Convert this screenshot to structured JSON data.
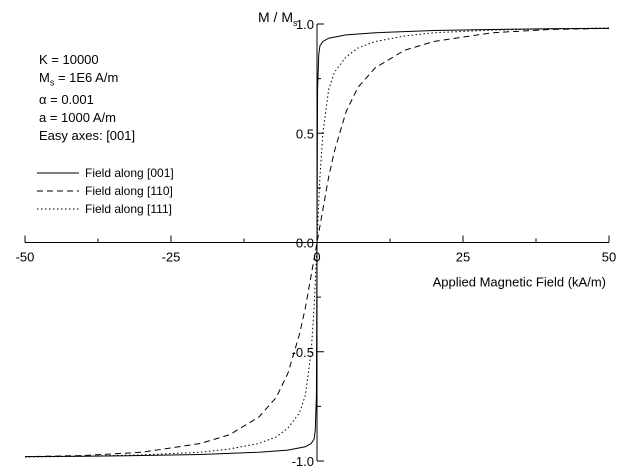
{
  "chart_data": {
    "type": "line",
    "ylabel_main": "M / M",
    "ylabel_sub": "s",
    "xlabel": "Applied Magnetic Field (kA/m)",
    "xlim": [
      -50,
      50
    ],
    "ylim": [
      -1.0,
      1.0
    ],
    "x_ticks": [
      "-50",
      "-25",
      "0",
      "25",
      "50"
    ],
    "y_ticks": [
      "-1.0",
      "-0.5",
      "0.0",
      "0.5",
      "1.0"
    ],
    "grid": false,
    "legend_position": "upper-left",
    "parameters": {
      "k": "K = 10000",
      "ms_main": "M",
      "ms_sub": "s",
      "ms_rest": " = 1E6 A/m",
      "alpha": "α = 0.001",
      "a": "a = 1000 A/m",
      "easy": "Easy axes: [001]"
    },
    "series": [
      {
        "name": "Field along [001]",
        "style": "solid",
        "x": [
          0,
          0.1,
          0.3,
          0.5,
          1,
          2,
          5,
          10,
          20,
          30,
          40,
          50
        ],
        "y": [
          0,
          0.7,
          0.86,
          0.9,
          0.92,
          0.935,
          0.95,
          0.96,
          0.97,
          0.975,
          0.978,
          0.98
        ]
      },
      {
        "name": "Field along [110]",
        "style": "dashed",
        "x": [
          0,
          1,
          2,
          3,
          5,
          7,
          10,
          15,
          20,
          30,
          40,
          50
        ],
        "y": [
          0,
          0.15,
          0.3,
          0.42,
          0.6,
          0.71,
          0.8,
          0.88,
          0.92,
          0.96,
          0.975,
          0.98
        ]
      },
      {
        "name": "Field along [111]",
        "style": "dotted",
        "x": [
          0,
          0.5,
          1,
          2,
          3,
          5,
          7,
          10,
          15,
          20,
          30,
          40,
          50
        ],
        "y": [
          0,
          0.3,
          0.5,
          0.7,
          0.78,
          0.85,
          0.89,
          0.92,
          0.945,
          0.96,
          0.972,
          0.978,
          0.982
        ]
      }
    ]
  }
}
